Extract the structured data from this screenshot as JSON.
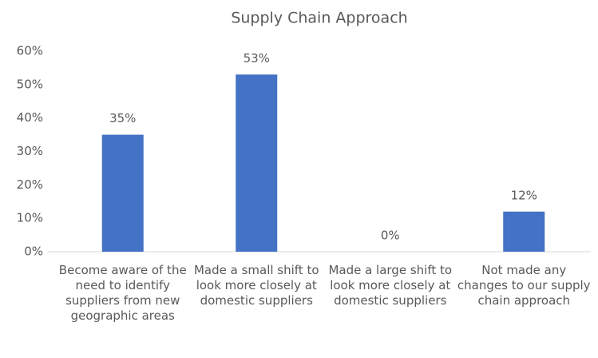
{
  "chart_data": {
    "type": "bar",
    "title": "Supply Chain Approach",
    "categories": [
      "Become aware of the need to identify suppliers from new geographic areas",
      "Made a small shift to look more closely at domestic suppliers",
      "Made a large shift to look more closely at domestic suppliers",
      "Not made any changes to our supply chain approach"
    ],
    "values": [
      35,
      53,
      0,
      12
    ],
    "value_labels": [
      "35%",
      "53%",
      "0%",
      "12%"
    ],
    "color": "#4472c4",
    "ylim": [
      0,
      60
    ],
    "yticks": [
      {
        "value": 0,
        "label": "0%"
      },
      {
        "value": 10,
        "label": "10%"
      },
      {
        "value": 20,
        "label": "20%"
      },
      {
        "value": 30,
        "label": "30%"
      },
      {
        "value": 40,
        "label": "40%"
      },
      {
        "value": 50,
        "label": "50%"
      },
      {
        "value": 60,
        "label": "60%"
      }
    ],
    "grid": false
  }
}
